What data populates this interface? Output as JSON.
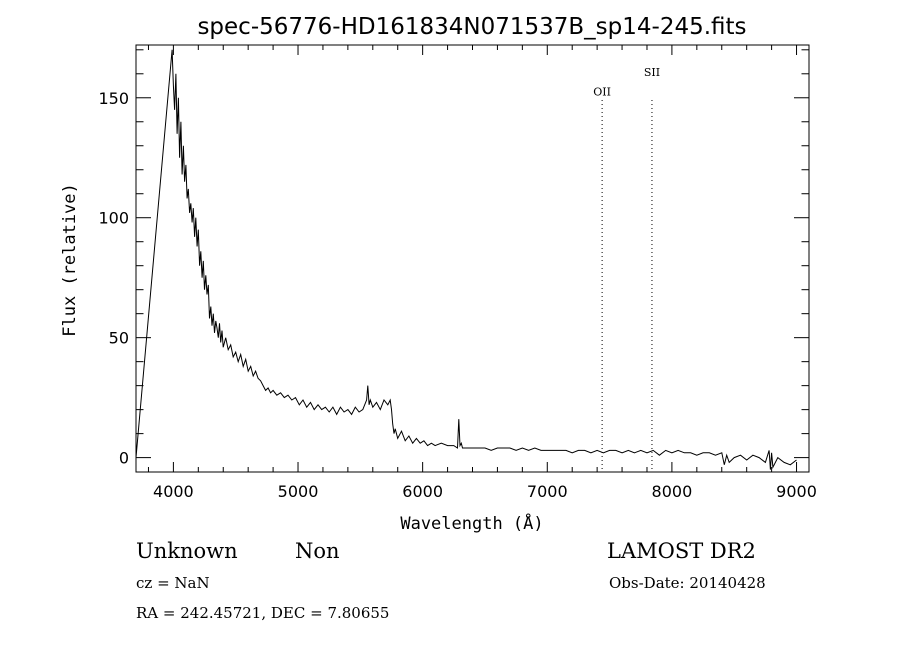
{
  "chart_data": {
    "type": "line",
    "title": "spec-56776-HD161834N071537B_sp14-245.fits",
    "xlabel": "Wavelength (Å)",
    "ylabel": "Flux (relative)",
    "xlim": [
      3700,
      9100
    ],
    "ylim": [
      -6,
      172
    ],
    "x_ticks": [
      4000,
      5000,
      6000,
      7000,
      8000,
      9000
    ],
    "y_ticks": [
      0,
      50,
      100,
      150
    ],
    "x_minor_step": 200,
    "y_minor_step": 10,
    "grid": false,
    "series": [
      {
        "x": [
          3700,
          3990,
          4000,
          4010,
          4020,
          4030,
          4040,
          4050,
          4060,
          4070,
          4080,
          4090,
          4100,
          4110,
          4120,
          4130,
          4140,
          4150,
          4160,
          4170,
          4180,
          4190,
          4200,
          4210,
          4220,
          4230,
          4240,
          4250,
          4260,
          4270,
          4280,
          4290,
          4300,
          4310,
          4320,
          4330,
          4340,
          4350,
          4360,
          4370,
          4380,
          4390,
          4400,
          4420,
          4440,
          4460,
          4480,
          4500,
          4520,
          4540,
          4560,
          4580,
          4600,
          4620,
          4640,
          4660,
          4680,
          4700,
          4720,
          4740,
          4760,
          4780,
          4800,
          4830,
          4860,
          4890,
          4920,
          4950,
          4980,
          5010,
          5040,
          5070,
          5100,
          5130,
          5160,
          5190,
          5220,
          5250,
          5280,
          5310,
          5340,
          5370,
          5400,
          5430,
          5460,
          5490,
          5520,
          5550,
          5560,
          5570,
          5580,
          5600,
          5630,
          5660,
          5690,
          5720,
          5740,
          5750,
          5760,
          5770,
          5780,
          5800,
          5830,
          5860,
          5890,
          5920,
          5950,
          5980,
          6010,
          6040,
          6070,
          6100,
          6150,
          6200,
          6250,
          6280,
          6290,
          6300,
          6310,
          6320,
          6350,
          6400,
          6450,
          6500,
          6550,
          6600,
          6650,
          6700,
          6750,
          6800,
          6850,
          6900,
          6950,
          7000,
          7050,
          7100,
          7150,
          7200,
          7250,
          7300,
          7350,
          7400,
          7450,
          7500,
          7550,
          7600,
          7650,
          7700,
          7750,
          7800,
          7850,
          7900,
          7950,
          8000,
          8050,
          8100,
          8150,
          8200,
          8250,
          8300,
          8350,
          8400,
          8420,
          8440,
          8460,
          8500,
          8550,
          8600,
          8650,
          8700,
          8750,
          8780,
          8790,
          8800,
          8810,
          8850,
          8900,
          8950,
          9000
        ],
        "y": [
          0,
          170,
          155,
          145,
          160,
          135,
          150,
          125,
          140,
          118,
          130,
          115,
          122,
          108,
          112,
          102,
          106,
          98,
          104,
          92,
          100,
          88,
          95,
          80,
          86,
          75,
          82,
          70,
          76,
          68,
          72,
          58,
          63,
          55,
          60,
          52,
          57,
          54,
          50,
          56,
          48,
          53,
          46,
          50,
          45,
          47,
          42,
          44,
          40,
          43,
          38,
          41,
          36,
          38,
          34,
          36,
          33,
          32,
          30,
          28,
          29,
          27,
          28,
          26,
          27,
          25,
          26,
          24,
          25,
          22,
          24,
          21,
          23,
          20,
          22,
          20,
          21,
          19,
          21,
          18,
          21,
          19,
          20,
          18,
          21,
          19,
          20,
          24,
          30,
          22,
          24,
          21,
          23,
          20,
          24,
          22,
          24,
          20,
          14,
          10,
          12,
          8,
          11,
          7,
          9,
          6,
          8,
          6,
          7,
          5,
          6,
          5,
          6,
          5,
          5,
          4,
          16,
          5,
          6,
          4,
          4,
          4,
          4,
          4,
          3,
          4,
          4,
          4,
          3,
          4,
          3,
          4,
          3,
          3,
          3,
          3,
          3,
          2,
          3,
          3,
          2,
          3,
          2,
          3,
          3,
          2,
          3,
          2,
          3,
          2,
          3,
          1,
          3,
          2,
          3,
          2,
          2,
          1,
          2,
          2,
          1,
          2,
          -3,
          1,
          -2,
          0,
          1,
          -1,
          1,
          0,
          -2,
          3,
          -5,
          2,
          -4,
          0,
          -2,
          -3,
          -1
        ]
      }
    ],
    "line_markers": [
      {
        "label": "OII",
        "x": 7440,
        "label_y": 151
      },
      {
        "label": "SII",
        "x": 7840,
        "label_y": 159
      }
    ]
  },
  "info": {
    "class_label": "Unknown",
    "subclass_label": "Non",
    "survey": "LAMOST DR2",
    "cz": "cz = NaN",
    "obs_date": "Obs-Date: 20140428",
    "coords": "RA = 242.45721, DEC =   7.80655"
  }
}
